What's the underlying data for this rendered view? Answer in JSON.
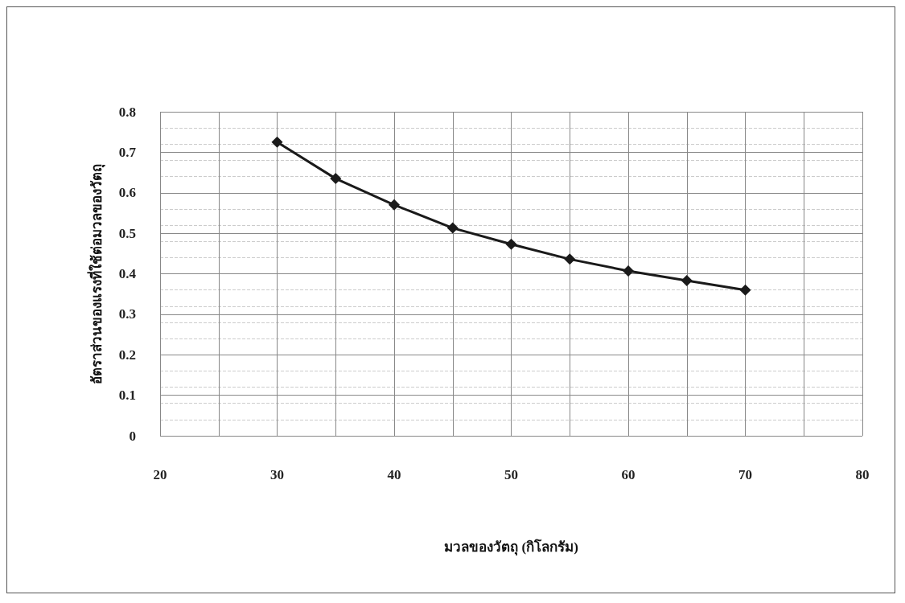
{
  "chart_data": {
    "type": "line",
    "xlabel": "มวลของวัตถุ (กิโลกรัม)",
    "ylabel": "อัตราส่วนของแรงที่ใช้ต่อมวลของวัตถุ",
    "x": [
      30,
      35,
      40,
      45,
      50,
      55,
      60,
      65,
      70
    ],
    "series": [
      {
        "color": "#1a1a1a",
        "values": [
          0.725,
          0.635,
          0.57,
          0.513,
          0.473,
          0.436,
          0.407,
          0.383,
          0.36
        ]
      }
    ],
    "xlim": [
      20,
      80
    ],
    "xticks": [
      20,
      {
        "value": 25,
        "label": null
      },
      30,
      {
        "value": 35,
        "label": null
      },
      40,
      {
        "value": 45,
        "label": null
      },
      50,
      {
        "value": 55,
        "label": null
      },
      60,
      {
        "value": 65,
        "label": null
      },
      70,
      {
        "value": 75,
        "label": null
      },
      80
    ],
    "ylim": [
      0,
      0.8
    ],
    "yticks": [
      0,
      0.1,
      0.2,
      0.3,
      0.4,
      0.5,
      0.6,
      0.7,
      0.8
    ],
    "grid": true,
    "marker": "diamond",
    "line_style": "solid"
  }
}
